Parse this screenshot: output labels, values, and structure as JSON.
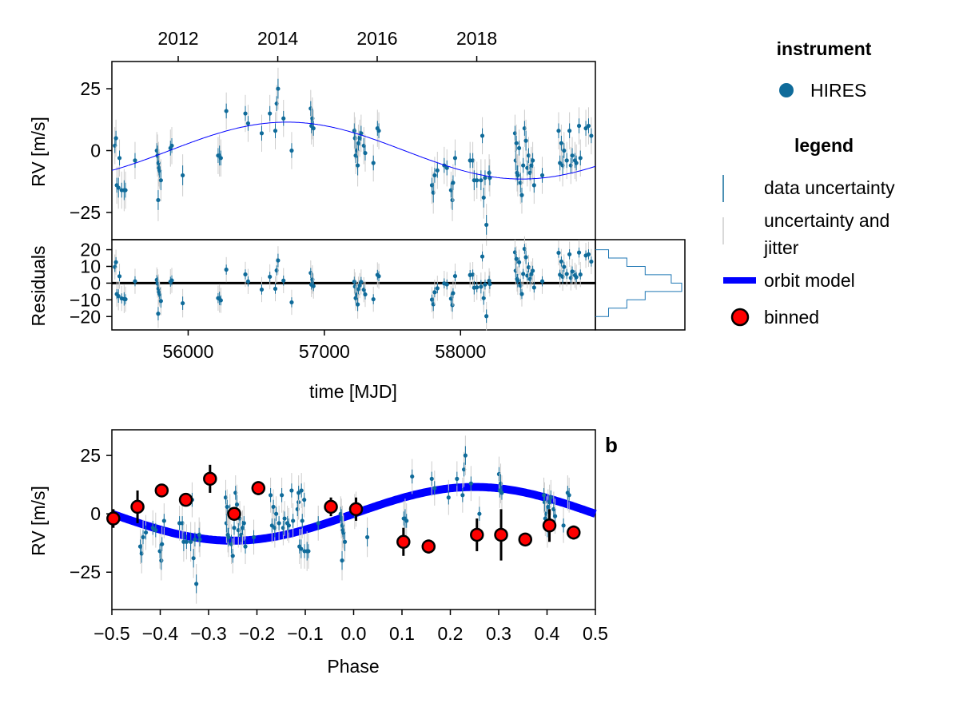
{
  "chart_data": {
    "type": "scatter",
    "description_free": true,
    "period_days": 3450,
    "model": {
      "amplitude": 11.5,
      "phase_of_max_mjd": 56725,
      "period": 3450
    },
    "top_axis": {
      "tick_labels": [
        "2012",
        "2014",
        "2016",
        "2018"
      ],
      "tick_mjd": [
        55927,
        56658,
        57388,
        58119
      ]
    },
    "rv_panel": {
      "ylabel": "RV [m/s]",
      "xlim": [
        55440,
        58990
      ],
      "ylim": [
        -36,
        36
      ],
      "y_ticks": [
        25,
        0,
        -25
      ],
      "y_tick_labels": [
        "25",
        "0",
        "−25"
      ]
    },
    "resid_panel": {
      "ylabel": "Residuals",
      "xlabel": "time [MJD]",
      "xlim": [
        55440,
        58990
      ],
      "ylim": [
        -28,
        26
      ],
      "y_ticks": [
        20,
        10,
        0,
        -10,
        -20
      ],
      "y_tick_labels": [
        "20",
        "10",
        "0",
        "−10",
        "−20"
      ],
      "x_ticks": [
        56000,
        57000,
        58000
      ],
      "x_tick_labels": [
        "56000",
        "57000",
        "58000"
      ],
      "histogram": {
        "bin_edges": [
          20,
          15,
          10,
          5,
          0,
          -5,
          -10,
          -15,
          -20
        ],
        "counts": [
          2,
          9,
          16,
          26,
          30,
          16,
          9,
          2
        ]
      }
    },
    "phase_panel": {
      "letter": "b",
      "ylabel": "RV [m/s]",
      "xlabel": "Phase",
      "xlim": [
        -0.5,
        0.5
      ],
      "ylim": [
        -41,
        36
      ],
      "y_ticks": [
        25,
        0,
        -25
      ],
      "y_tick_labels": [
        "25",
        "0",
        "−25"
      ],
      "x_ticks": [
        -0.5,
        -0.4,
        -0.3,
        -0.2,
        -0.1,
        0.0,
        0.1,
        0.2,
        0.3,
        0.4,
        0.5
      ],
      "x_tick_labels": [
        "−0.5",
        "−0.4",
        "−0.3",
        "−0.2",
        "−0.1",
        "0.0",
        "0.1",
        "0.2",
        "0.3",
        "0.4",
        "0.5"
      ],
      "binned": [
        {
          "phase": -0.497,
          "rv": -2,
          "err": 4
        },
        {
          "phase": -0.447,
          "rv": 3,
          "err": 7
        },
        {
          "phase": -0.397,
          "rv": 10,
          "err": 2
        },
        {
          "phase": -0.347,
          "rv": 6,
          "err": 2
        },
        {
          "phase": -0.297,
          "rv": 15,
          "err": 6
        },
        {
          "phase": -0.247,
          "rv": 0,
          "err": 0
        },
        {
          "phase": -0.197,
          "rv": 11,
          "err": 3
        },
        {
          "phase": -0.047,
          "rv": 3,
          "err": 4
        },
        {
          "phase": 0.005,
          "rv": 2,
          "err": 5
        },
        {
          "phase": 0.103,
          "rv": -12,
          "err": 6
        },
        {
          "phase": 0.155,
          "rv": -14,
          "err": 3
        },
        {
          "phase": 0.255,
          "rv": -9,
          "err": 7
        },
        {
          "phase": 0.305,
          "rv": -9,
          "err": 11
        },
        {
          "phase": 0.355,
          "rv": -11,
          "err": 0
        },
        {
          "phase": 0.405,
          "rv": -5,
          "err": 7
        },
        {
          "phase": 0.455,
          "rv": -8,
          "err": 3
        }
      ]
    },
    "observations": {
      "fields": [
        "mjd",
        "rv",
        "err"
      ],
      "points": [
        [
          55462,
          2,
          3
        ],
        [
          55470,
          5,
          3
        ],
        [
          55476,
          -14,
          3
        ],
        [
          55488,
          -15,
          4
        ],
        [
          55496,
          -3,
          3
        ],
        [
          55512,
          -16,
          3
        ],
        [
          55530,
          -16,
          4
        ],
        [
          55540,
          -16,
          3
        ],
        [
          55610,
          -4,
          3
        ],
        [
          55770,
          0,
          3
        ],
        [
          55775,
          -2,
          4
        ],
        [
          55780,
          -20,
          4
        ],
        [
          55782,
          -5,
          4
        ],
        [
          55786,
          -7,
          3
        ],
        [
          55790,
          -8,
          3
        ],
        [
          55800,
          -12,
          4
        ],
        [
          55870,
          1,
          3
        ],
        [
          55880,
          2,
          3
        ],
        [
          55960,
          -10,
          4
        ],
        [
          56220,
          -2,
          3
        ],
        [
          56230,
          -2,
          4
        ],
        [
          56240,
          -3,
          3
        ],
        [
          56280,
          16,
          3
        ],
        [
          56420,
          15,
          3
        ],
        [
          56440,
          11,
          3
        ],
        [
          56540,
          7,
          3
        ],
        [
          56600,
          15,
          3
        ],
        [
          56640,
          8,
          3
        ],
        [
          56650,
          19,
          3
        ],
        [
          56660,
          25,
          4
        ],
        [
          56700,
          13,
          3
        ],
        [
          56760,
          0,
          3
        ],
        [
          56900,
          17,
          3
        ],
        [
          56905,
          10,
          3
        ],
        [
          56912,
          13,
          4
        ],
        [
          56920,
          9,
          3
        ],
        [
          57220,
          8,
          3
        ],
        [
          57225,
          5,
          4
        ],
        [
          57230,
          -2,
          3
        ],
        [
          57240,
          0,
          3
        ],
        [
          57245,
          -6,
          4
        ],
        [
          57250,
          3,
          3
        ],
        [
          57260,
          5,
          3
        ],
        [
          57270,
          7,
          3
        ],
        [
          57290,
          2,
          3
        ],
        [
          57300,
          -1,
          3
        ],
        [
          57360,
          -5,
          3
        ],
        [
          57390,
          9,
          3
        ],
        [
          57400,
          8,
          3
        ],
        [
          57790,
          -14,
          3
        ],
        [
          57800,
          -17,
          4
        ],
        [
          57810,
          -10,
          3
        ],
        [
          57830,
          -8,
          3
        ],
        [
          57880,
          -6,
          3
        ],
        [
          57900,
          -7,
          3
        ],
        [
          57930,
          -16,
          3
        ],
        [
          57940,
          -20,
          4
        ],
        [
          57945,
          -13,
          3
        ],
        [
          57960,
          -3,
          3
        ],
        [
          58070,
          -4,
          3
        ],
        [
          58090,
          -4,
          3
        ],
        [
          58100,
          -12,
          4
        ],
        [
          58120,
          -12,
          3
        ],
        [
          58150,
          -12,
          4
        ],
        [
          58160,
          6,
          3
        ],
        [
          58170,
          -19,
          4
        ],
        [
          58180,
          -11,
          3
        ],
        [
          58190,
          -30,
          4
        ],
        [
          58210,
          -9,
          3
        ],
        [
          58215,
          -11,
          3
        ],
        [
          58400,
          7,
          3
        ],
        [
          58405,
          -4,
          4
        ],
        [
          58410,
          3,
          3
        ],
        [
          58415,
          -9,
          3
        ],
        [
          58420,
          -10,
          4
        ],
        [
          58430,
          1,
          3
        ],
        [
          58440,
          -13,
          4
        ],
        [
          58450,
          -18,
          3
        ],
        [
          58460,
          -6,
          3
        ],
        [
          58470,
          9,
          3
        ],
        [
          58480,
          4,
          4
        ],
        [
          58490,
          -7,
          3
        ],
        [
          58500,
          -2,
          3
        ],
        [
          58510,
          -9,
          3
        ],
        [
          58520,
          -6,
          3
        ],
        [
          58530,
          -4,
          3
        ],
        [
          58540,
          -14,
          3
        ],
        [
          58600,
          -10,
          3
        ],
        [
          58720,
          8,
          3
        ],
        [
          58730,
          -5,
          3
        ],
        [
          58740,
          3,
          3
        ],
        [
          58750,
          -6,
          4
        ],
        [
          58760,
          0,
          3
        ],
        [
          58780,
          -4,
          3
        ],
        [
          58800,
          8,
          3
        ],
        [
          58810,
          -6,
          3
        ],
        [
          58820,
          -2,
          3
        ],
        [
          58840,
          -4,
          3
        ],
        [
          58850,
          -5,
          3
        ],
        [
          58870,
          10,
          3
        ],
        [
          58880,
          -3,
          3
        ],
        [
          58920,
          9,
          3
        ],
        [
          58940,
          10,
          3
        ],
        [
          58960,
          6,
          3
        ]
      ]
    }
  },
  "legend": {
    "instrument_title": "instrument",
    "instrument_items": [
      {
        "label": "HIRES",
        "color": "#0f6b9a"
      }
    ],
    "legend_title": "legend",
    "items": [
      {
        "key": "data_uncertainty",
        "label": "data uncertainty"
      },
      {
        "key": "uncertainty_jitter",
        "label_line1": "uncertainty and",
        "label_line2": "jitter"
      },
      {
        "key": "orbit_model",
        "label": "orbit model"
      },
      {
        "key": "binned",
        "label": "binned"
      }
    ]
  },
  "colors": {
    "points": "#0f6b9a",
    "jitter": "#cccccc",
    "model": "#0000ff",
    "binned_fill": "#ff0000",
    "binned_edge": "#000000",
    "hist": "#1f77b4"
  }
}
